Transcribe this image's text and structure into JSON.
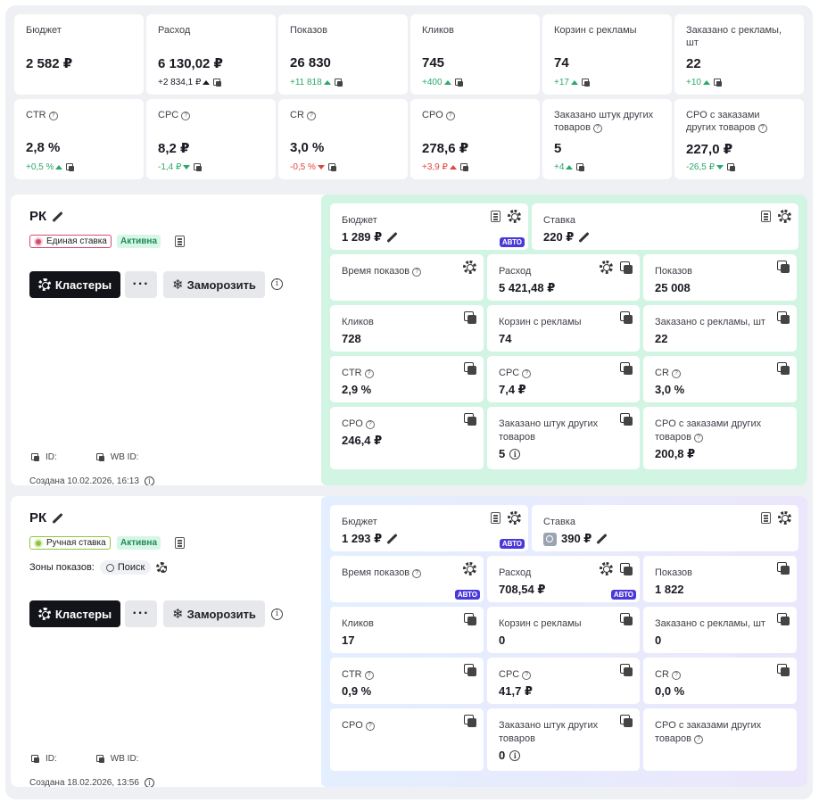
{
  "stats": [
    {
      "label": "Бюджет",
      "value": "2 582 ₽",
      "delta": "",
      "dir": ""
    },
    {
      "label": "Расход",
      "value": "6 130,02 ₽",
      "delta": "+2 834,1 ₽",
      "dir": "up-k"
    },
    {
      "label": "Показов",
      "value": "26 830",
      "delta": "+11 818",
      "dir": "up"
    },
    {
      "label": "Кликов",
      "value": "745",
      "delta": "+400",
      "dir": "up"
    },
    {
      "label": "Корзин с рекламы",
      "value": "74",
      "delta": "+17",
      "dir": "up"
    },
    {
      "label": "Заказано с рекламы, шт",
      "value": "22",
      "delta": "+10",
      "dir": "up"
    },
    {
      "label": "CTR",
      "value": "2,8 %",
      "delta": "+0,5 %",
      "dir": "up"
    },
    {
      "label": "CPC",
      "value": "8,2 ₽",
      "delta": "-1,4 ₽",
      "dir": "down-g"
    },
    {
      "label": "CR",
      "value": "3,0 %",
      "delta": "-0,5 %",
      "dir": "down-r"
    },
    {
      "label": "CPO",
      "value": "278,6 ₽",
      "delta": "+3,9 ₽",
      "dir": "up-r"
    },
    {
      "label": "Заказано штук других товаров",
      "value": "5",
      "delta": "+4",
      "dir": "up"
    },
    {
      "label": "CPO с заказами других товаров",
      "value": "227,0 ₽",
      "delta": "-26,5 ₽",
      "dir": "down-g"
    }
  ],
  "campaigns": [
    {
      "title": "РК",
      "bid_type": "Единая ставка",
      "status": "Активна",
      "clusters_label": "Кластеры",
      "freeze_label": "Заморозить",
      "id_label": "ID:",
      "wb_id_label": "WB ID:",
      "created": "Создана 10.02.2026, 16:13",
      "budget": {
        "label": "Бюджет",
        "value": "1 289 ₽",
        "auto": "АВТО"
      },
      "rate": {
        "label": "Ставка",
        "value": "220 ₽"
      },
      "cells": [
        {
          "label": "Время показов",
          "value": ""
        },
        {
          "label": "Расход",
          "value": "5 421,48 ₽"
        },
        {
          "label": "Показов",
          "value": "25 008"
        },
        {
          "label": "Кликов",
          "value": "728"
        },
        {
          "label": "Корзин с рекламы",
          "value": "74"
        },
        {
          "label": "Заказано с рекламы, шт",
          "value": "22"
        },
        {
          "label": "CTR",
          "value": "2,9 %"
        },
        {
          "label": "CPC",
          "value": "7,4 ₽"
        },
        {
          "label": "CR",
          "value": "3,0 %"
        },
        {
          "label": "CPO",
          "value": "246,4 ₽"
        },
        {
          "label": "Заказано штук других товаров",
          "value": "5"
        },
        {
          "label": "CPO с заказами других товаров",
          "value": "200,8 ₽"
        }
      ]
    },
    {
      "title": "РК",
      "bid_type": "Ручная ставка",
      "status": "Активна",
      "zones_label": "Зоны показов:",
      "zone": "Поиск",
      "clusters_label": "Кластеры",
      "freeze_label": "Заморозить",
      "id_label": "ID:",
      "wb_id_label": "WB ID:",
      "created": "Создана 18.02.2026, 13:56",
      "budget": {
        "label": "Бюджет",
        "value": "1 293 ₽",
        "auto": "АВТО"
      },
      "rate": {
        "label": "Ставка",
        "value": "390 ₽"
      },
      "auto_time": "АВТО",
      "auto_spend": "АВТО",
      "cells": [
        {
          "label": "Время показов",
          "value": ""
        },
        {
          "label": "Расход",
          "value": "708,54 ₽"
        },
        {
          "label": "Показов",
          "value": "1 822"
        },
        {
          "label": "Кликов",
          "value": "17"
        },
        {
          "label": "Корзин с рекламы",
          "value": "0"
        },
        {
          "label": "Заказано с рекламы, шт",
          "value": "0"
        },
        {
          "label": "CTR",
          "value": "0,9 %"
        },
        {
          "label": "CPC",
          "value": "41,7 ₽"
        },
        {
          "label": "CR",
          "value": "0,0 %"
        },
        {
          "label": "CPO",
          "value": ""
        },
        {
          "label": "Заказано штук других товаров",
          "value": "0"
        },
        {
          "label": "CPO с заказами других товаров",
          "value": ""
        }
      ]
    }
  ]
}
